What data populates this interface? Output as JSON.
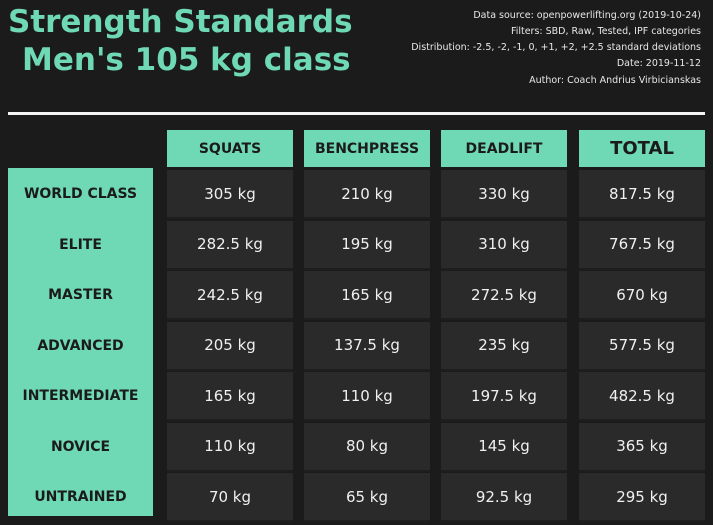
{
  "header": {
    "title": [
      "Strength Standards",
      "Men's 105 kg class"
    ],
    "info": [
      "Data source: openpowerlifting.org (2019-10-24)",
      "Filters: SBD, Raw, Tested, IPF categories",
      "Distribution: -2.5, -2, -1, 0, +1, +2, +2.5 standard deviations",
      "Date: 2019-11-12",
      "Author: Coach Andrius Virbicianskas"
    ]
  },
  "table": {
    "columns": [
      "SQUATS",
      "BENCHPRESS",
      "DEADLIFT",
      "TOTAL"
    ],
    "rows": [
      {
        "label": "WORLD CLASS",
        "cells": [
          "305 kg",
          "210 kg",
          "330 kg",
          "817.5 kg"
        ]
      },
      {
        "label": "ELITE",
        "cells": [
          "282.5 kg",
          "195 kg",
          "310 kg",
          "767.5 kg"
        ]
      },
      {
        "label": "MASTER",
        "cells": [
          "242.5 kg",
          "165 kg",
          "272.5 kg",
          "670 kg"
        ]
      },
      {
        "label": "ADVANCED",
        "cells": [
          "205 kg",
          "137.5 kg",
          "235 kg",
          "577.5 kg"
        ]
      },
      {
        "label": "INTERMEDIATE",
        "cells": [
          "165 kg",
          "110 kg",
          "197.5 kg",
          "482.5 kg"
        ]
      },
      {
        "label": "NOVICE",
        "cells": [
          "110 kg",
          "80 kg",
          "145 kg",
          "365 kg"
        ]
      },
      {
        "label": "UNTRAINED",
        "cells": [
          "70 kg",
          "65 kg",
          "92.5 kg",
          "295 kg"
        ]
      }
    ]
  }
}
